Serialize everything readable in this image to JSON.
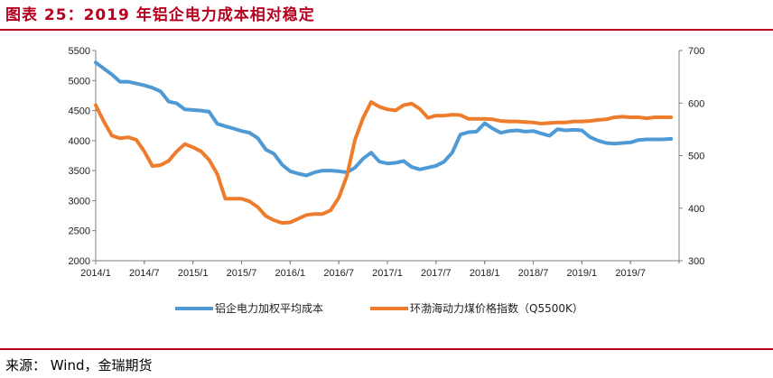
{
  "title": "图表 25：2019 年铝企电力成本相对稳定",
  "source": "来源： Wind，金瑞期货",
  "colors": {
    "series_blue": "#4f9ad5",
    "series_orange": "#ee7c2d",
    "accent": "#b5001f"
  },
  "chart_data": {
    "type": "line",
    "title": "",
    "xlabel": "",
    "ylabel": "",
    "x_tick_labels": [
      "2014/1",
      "2014/7",
      "2015/1",
      "2015/7",
      "2016/1",
      "2016/7",
      "2017/1",
      "2017/7",
      "2018/1",
      "2018/7",
      "2019/1",
      "2019/7"
    ],
    "y_left": {
      "ticks": [
        2000,
        2500,
        3000,
        3500,
        4000,
        4500,
        5000,
        5500
      ],
      "ylim": [
        2000,
        5500
      ]
    },
    "y_right": {
      "ticks": [
        300,
        400,
        500,
        600,
        700
      ],
      "ylim": [
        300,
        700
      ]
    },
    "legend_position": "bottom-center",
    "grid": false,
    "series": [
      {
        "name": "铝企电力加权平均成本",
        "axis": "left",
        "x": [
          2014.0,
          2014.083,
          2014.167,
          2014.25,
          2014.333,
          2014.417,
          2014.5,
          2014.583,
          2014.667,
          2014.75,
          2014.833,
          2014.917,
          2015.0,
          2015.083,
          2015.167,
          2015.25,
          2015.333,
          2015.417,
          2015.5,
          2015.583,
          2015.667,
          2015.75,
          2015.833,
          2015.917,
          2016.0,
          2016.083,
          2016.167,
          2016.25,
          2016.333,
          2016.417,
          2016.5,
          2016.583,
          2016.667,
          2016.75,
          2016.833,
          2016.917,
          2017.0,
          2017.083,
          2017.167,
          2017.25,
          2017.333,
          2017.417,
          2017.5,
          2017.583,
          2017.667,
          2017.75,
          2017.833,
          2017.917,
          2018.0,
          2018.083,
          2018.167,
          2018.25,
          2018.333,
          2018.417,
          2018.5,
          2018.583,
          2018.667,
          2018.75,
          2018.833,
          2018.917,
          2019.0,
          2019.083,
          2019.167,
          2019.25,
          2019.333,
          2019.417,
          2019.5,
          2019.583,
          2019.667,
          2019.75,
          2019.833,
          2019.917
        ],
        "y": [
          5300,
          5200,
          5100,
          4980,
          4980,
          4950,
          4920,
          4880,
          4820,
          4650,
          4620,
          4520,
          4510,
          4500,
          4480,
          4280,
          4240,
          4200,
          4160,
          4130,
          4040,
          3850,
          3780,
          3600,
          3490,
          3450,
          3420,
          3470,
          3500,
          3500,
          3490,
          3470,
          3550,
          3700,
          3800,
          3650,
          3620,
          3630,
          3660,
          3560,
          3520,
          3550,
          3580,
          3650,
          3800,
          4100,
          4140,
          4150,
          4290,
          4200,
          4130,
          4160,
          4170,
          4150,
          4160,
          4120,
          4080,
          4190,
          4170,
          4180,
          4170,
          4060,
          4000,
          3960,
          3950,
          3960,
          3970,
          4010,
          4020,
          4020,
          4020,
          4030
        ]
      },
      {
        "name": "环渤海动力煤价格指数（Q5500K）",
        "axis": "right",
        "x": [
          2014.0,
          2014.083,
          2014.167,
          2014.25,
          2014.333,
          2014.417,
          2014.5,
          2014.583,
          2014.667,
          2014.75,
          2014.833,
          2014.917,
          2015.0,
          2015.083,
          2015.167,
          2015.25,
          2015.333,
          2015.417,
          2015.5,
          2015.583,
          2015.667,
          2015.75,
          2015.833,
          2015.917,
          2016.0,
          2016.083,
          2016.167,
          2016.25,
          2016.333,
          2016.417,
          2016.5,
          2016.583,
          2016.667,
          2016.75,
          2016.833,
          2016.917,
          2017.0,
          2017.083,
          2017.167,
          2017.25,
          2017.333,
          2017.417,
          2017.5,
          2017.583,
          2017.667,
          2017.75,
          2017.833,
          2017.917,
          2018.0,
          2018.083,
          2018.167,
          2018.25,
          2018.333,
          2018.417,
          2018.5,
          2018.583,
          2018.667,
          2018.75,
          2018.833,
          2018.917,
          2019.0,
          2019.083,
          2019.167,
          2019.25,
          2019.333,
          2019.417,
          2019.5,
          2019.583,
          2019.667,
          2019.75,
          2019.833,
          2019.917
        ],
        "y": [
          596,
          565,
          538,
          533,
          535,
          530,
          508,
          480,
          482,
          490,
          508,
          522,
          516,
          508,
          492,
          465,
          418,
          418,
          418,
          413,
          402,
          385,
          377,
          372,
          373,
          380,
          387,
          389,
          389,
          396,
          420,
          461,
          530,
          572,
          602,
          593,
          588,
          586,
          596,
          599,
          589,
          572,
          576,
          576,
          578,
          577,
          570,
          570,
          570,
          569,
          566,
          565,
          565,
          564,
          563,
          561,
          562,
          563,
          563,
          565,
          565,
          566,
          568,
          569,
          573,
          574,
          573,
          573,
          571,
          573,
          573,
          573
        ]
      }
    ]
  }
}
